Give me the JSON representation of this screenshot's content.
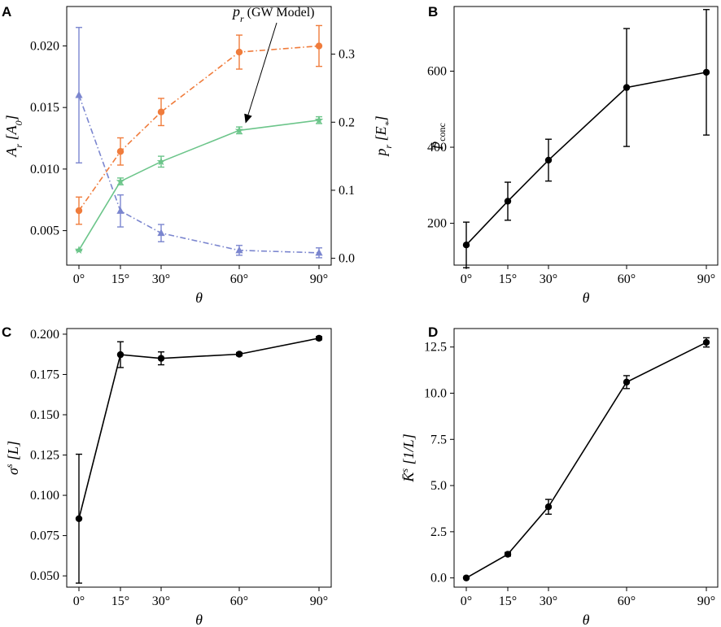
{
  "figure": {
    "x_axis_label": "θ",
    "x_tick_labels": [
      "0°",
      "15°",
      "30°",
      "60°",
      "90°"
    ]
  },
  "chart_data": [
    {
      "id": "A",
      "type": "line",
      "panel_label": "A",
      "x": [
        0,
        15,
        30,
        60,
        90
      ],
      "xlabel": "θ",
      "left_axis": {
        "label": "A_r [A_0]",
        "label_parts": [
          "A",
          "r",
          " [A",
          "0",
          "]"
        ],
        "range": [
          0.0022,
          0.0232
        ],
        "ticks": [
          0.005,
          0.01,
          0.015,
          0.02
        ],
        "tick_labels": [
          "0.005",
          "0.010",
          "0.015",
          "0.020"
        ],
        "color": "#7b86cf"
      },
      "right_axis": {
        "label": "p_r [E*]",
        "label_parts": [
          "p",
          "r",
          " [E",
          "*",
          "]"
        ],
        "range": [
          -0.01,
          0.37
        ],
        "ticks": [
          0.0,
          0.1,
          0.2,
          0.3
        ],
        "tick_labels": [
          "0.0",
          "0.1",
          "0.2",
          "0.3"
        ],
        "color": "#f07c3c"
      },
      "series": [
        {
          "name": "A_r",
          "axis": "left",
          "style": "dash-dot",
          "marker": "triangle",
          "color": "#7b86cf",
          "values": [
            0.016,
            0.0066,
            0.0048,
            0.0034,
            0.0032
          ],
          "err_lo": [
            0.0055,
            0.0013,
            0.0007,
            0.0004,
            0.0004
          ],
          "err_hi": [
            0.0055,
            0.0013,
            0.0007,
            0.0004,
            0.0004
          ]
        },
        {
          "name": "p_r",
          "axis": "right",
          "style": "dash-dot",
          "marker": "circle",
          "color": "#f07c3c",
          "values": [
            0.07,
            0.157,
            0.215,
            0.303,
            0.312
          ],
          "err_lo": [
            0.02,
            0.02,
            0.02,
            0.025,
            0.03
          ],
          "err_hi": [
            0.02,
            0.02,
            0.02,
            0.025,
            0.03
          ]
        },
        {
          "name": "p_r (GW Model)",
          "axis": "right",
          "style": "solid",
          "marker": "star",
          "color": "#6cc58a",
          "values": [
            0.012,
            0.113,
            0.142,
            0.188,
            0.203
          ],
          "err_lo": [
            0.001,
            0.005,
            0.008,
            0.005,
            0.005
          ],
          "err_hi": [
            0.001,
            0.005,
            0.008,
            0.005,
            0.005
          ]
        }
      ],
      "annotation": {
        "text": "(GW Model)",
        "prefix": "p",
        "sub": "r",
        "points_to_x": 60,
        "points_to_y": 0.19
      }
    },
    {
      "id": "B",
      "type": "line",
      "panel_label": "B",
      "x": [
        0,
        15,
        30,
        60,
        90
      ],
      "xlabel": "θ",
      "ylabel": "p_conc",
      "ylabel_parts": [
        "p",
        "conc"
      ],
      "ylim": [
        90,
        770
      ],
      "yticks": [
        200,
        400,
        600
      ],
      "ytick_labels": [
        "200",
        "400",
        "600"
      ],
      "series": [
        {
          "name": "p_conc",
          "color": "#000000",
          "values": [
            143,
            258,
            366,
            557,
            597
          ],
          "err_lo": [
            60,
            50,
            55,
            155,
            165
          ],
          "err_hi": [
            60,
            50,
            55,
            155,
            165
          ]
        }
      ]
    },
    {
      "id": "C",
      "type": "line",
      "panel_label": "C",
      "x": [
        0,
        15,
        30,
        60,
        90
      ],
      "xlabel": "θ",
      "ylabel": "σ^s [L]",
      "ylabel_parts": [
        "σ",
        "s",
        " [L]"
      ],
      "ylim": [
        0.043,
        0.2035
      ],
      "yticks": [
        0.05,
        0.075,
        0.1,
        0.125,
        0.15,
        0.175,
        0.2
      ],
      "ytick_labels": [
        "0.050",
        "0.075",
        "0.100",
        "0.125",
        "0.150",
        "0.175",
        "0.200"
      ],
      "series": [
        {
          "name": "sigma_s",
          "color": "#000000",
          "values": [
            0.0855,
            0.1873,
            0.185,
            0.1876,
            0.1975
          ],
          "err_lo": [
            0.04,
            0.008,
            0.004,
            0.001,
            0.001
          ],
          "err_hi": [
            0.04,
            0.008,
            0.004,
            0.001,
            0.001
          ]
        }
      ]
    },
    {
      "id": "D",
      "type": "line",
      "panel_label": "D",
      "x": [
        0,
        15,
        30,
        60,
        90
      ],
      "xlabel": "θ",
      "ylabel": "K̄^s [1/L]",
      "ylabel_parts": [
        "K̄",
        "s",
        " [1/L]"
      ],
      "ylim": [
        -0.5,
        13.5
      ],
      "yticks": [
        0,
        2.5,
        5,
        7.5,
        10,
        12.5
      ],
      "ytick_labels": [
        "0.0",
        "2.5",
        "5.0",
        "7.5",
        "10.0",
        "12.5"
      ],
      "series": [
        {
          "name": "K_s",
          "color": "#000000",
          "values": [
            0.0,
            1.28,
            3.85,
            10.6,
            12.75
          ],
          "err_lo": [
            0.05,
            0.1,
            0.4,
            0.35,
            0.25
          ],
          "err_hi": [
            0.05,
            0.1,
            0.4,
            0.35,
            0.25
          ]
        }
      ]
    }
  ]
}
